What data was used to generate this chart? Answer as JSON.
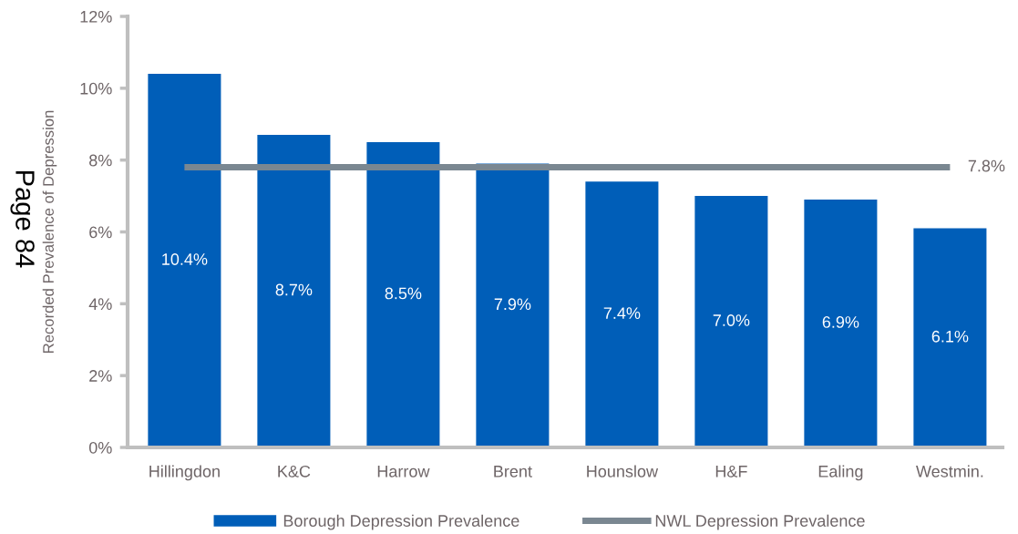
{
  "chart_data": {
    "type": "bar",
    "categories": [
      "Hillingdon",
      "K&C",
      "Harrow",
      "Brent",
      "Hounslow",
      "H&F",
      "Ealing",
      "Westmin."
    ],
    "ylabel": "Recorded Prevalence of Depression",
    "ylim": [
      0,
      12
    ],
    "yticks": [
      {
        "value": 0,
        "label": "0%"
      },
      {
        "value": 2,
        "label": "2%"
      },
      {
        "value": 4,
        "label": "4%"
      },
      {
        "value": 6,
        "label": "6%"
      },
      {
        "value": 8,
        "label": "8%"
      },
      {
        "value": 10,
        "label": "10%"
      },
      {
        "value": 12,
        "label": "12%"
      }
    ],
    "series": [
      {
        "name": "Borough Depression Prevalence",
        "color": "#005eb8",
        "values": [
          10.4,
          8.7,
          8.5,
          7.9,
          7.4,
          7.0,
          6.9,
          6.1
        ],
        "value_labels": [
          "10.4%",
          "8.7%",
          "8.5%",
          "7.9%",
          "7.4%",
          "7.0%",
          "6.9%",
          "6.1%"
        ]
      },
      {
        "name": "NWL Depression Prevalence",
        "type": "line",
        "color": "#7a8791",
        "line_style": "solid",
        "values": [
          7.8,
          7.8,
          7.8,
          7.8,
          7.8,
          7.8,
          7.8,
          7.8
        ],
        "value_labels": [
          null,
          null,
          null,
          null,
          null,
          null,
          null,
          "7.8%"
        ]
      }
    ],
    "legend": "bottom",
    "annotations": [
      "Page 84"
    ]
  }
}
